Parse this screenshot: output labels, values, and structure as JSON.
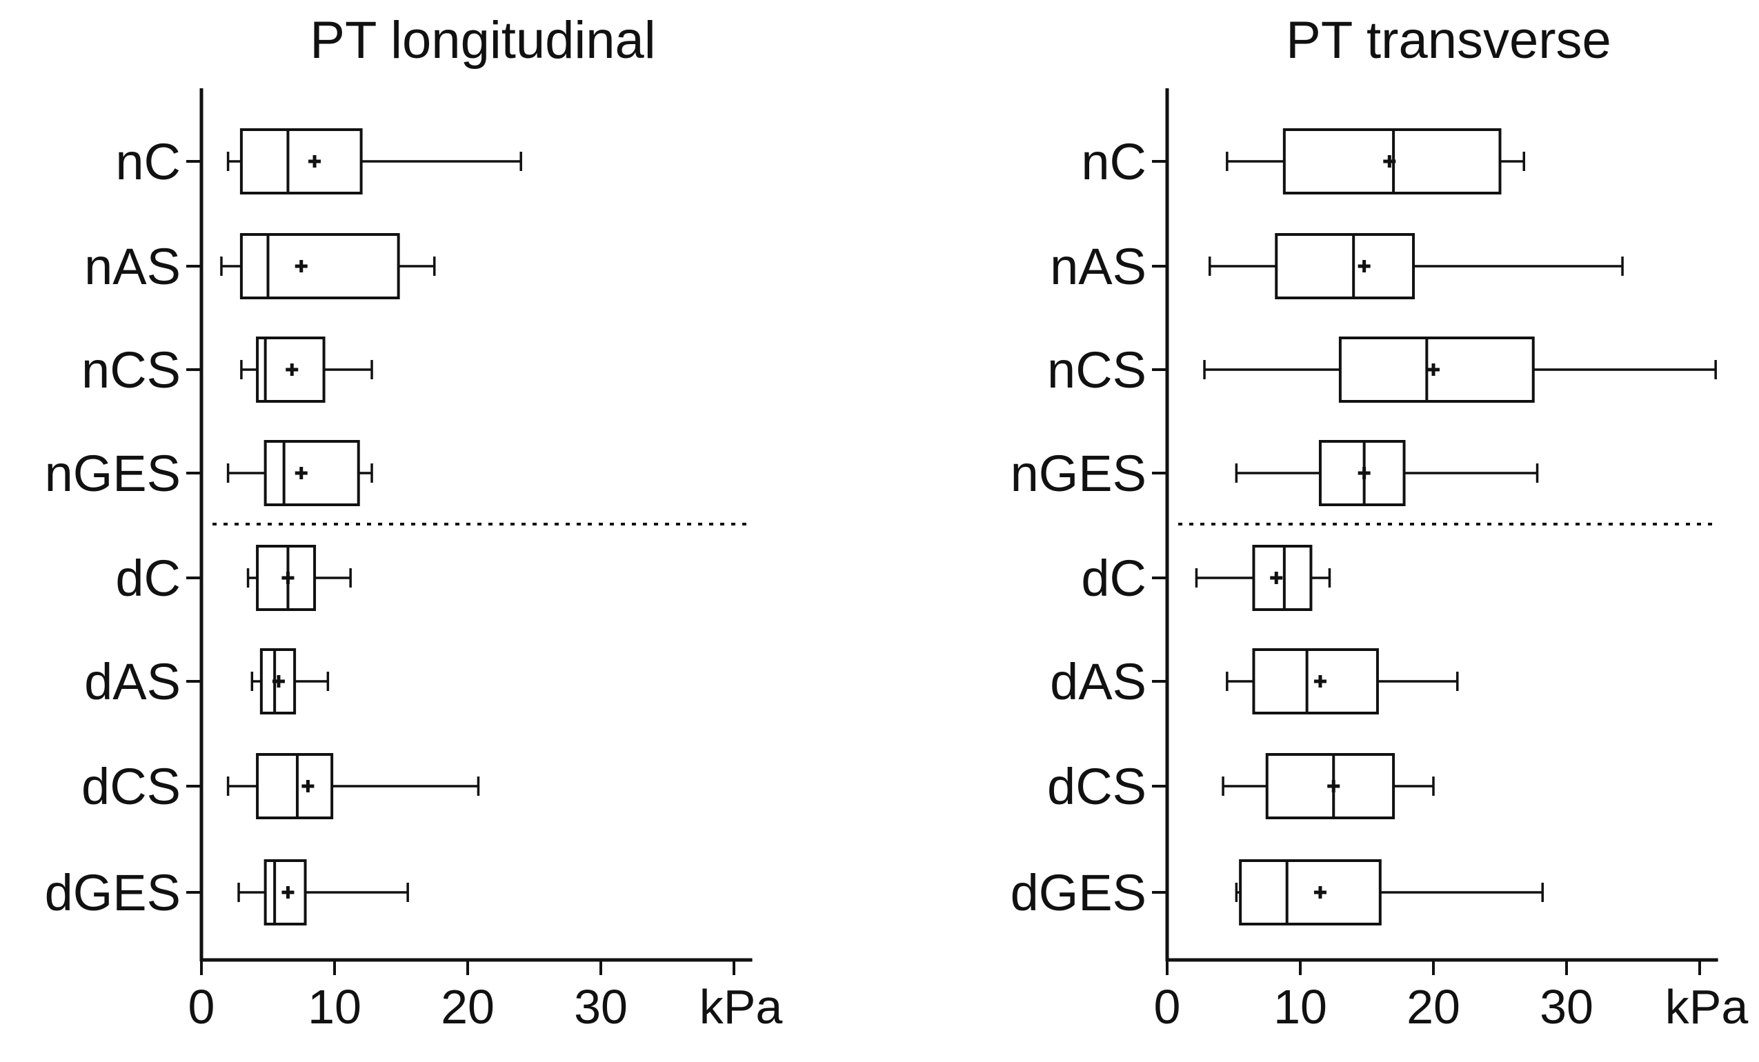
{
  "chart_data": [
    {
      "type": "boxplot",
      "title": "PT longitudinal",
      "unit_label": "kPa",
      "xlim": [
        0,
        42
      ],
      "xticks": [
        "0",
        "10",
        "20",
        "30"
      ],
      "categories": [
        "nC",
        "nAS",
        "nCS",
        "nGES",
        "dC",
        "dAS",
        "dCS",
        "dGES"
      ],
      "series": [
        {
          "name": "nC",
          "min": 2.0,
          "q1": 3.0,
          "median": 6.5,
          "q3": 12.0,
          "max": 24.0,
          "mean": 8.5
        },
        {
          "name": "nAS",
          "min": 1.5,
          "q1": 3.0,
          "median": 5.0,
          "q3": 14.8,
          "max": 17.5,
          "mean": 7.5
        },
        {
          "name": "nCS",
          "min": 3.0,
          "q1": 4.2,
          "median": 4.8,
          "q3": 9.2,
          "max": 12.8,
          "mean": 6.8
        },
        {
          "name": "nGES",
          "min": 2.0,
          "q1": 4.8,
          "median": 6.2,
          "q3": 11.8,
          "max": 12.8,
          "mean": 7.5
        },
        {
          "name": "dC",
          "min": 3.5,
          "q1": 4.2,
          "median": 6.5,
          "q3": 8.5,
          "max": 11.2,
          "mean": 6.5
        },
        {
          "name": "dAS",
          "min": 3.8,
          "q1": 4.5,
          "median": 5.5,
          "q3": 7.0,
          "max": 9.5,
          "mean": 5.8
        },
        {
          "name": "dCS",
          "min": 2.0,
          "q1": 4.2,
          "median": 7.2,
          "q3": 9.8,
          "max": 20.8,
          "mean": 8.0
        },
        {
          "name": "dGES",
          "min": 2.8,
          "q1": 4.8,
          "median": 5.5,
          "q3": 7.8,
          "max": 15.5,
          "mean": 6.5
        }
      ]
    },
    {
      "type": "boxplot",
      "title": "PT transverse",
      "unit_label": "kPa",
      "xlim": [
        0,
        42
      ],
      "xticks": [
        "0",
        "10",
        "20",
        "30"
      ],
      "categories": [
        "nC",
        "nAS",
        "nCS",
        "nGES",
        "dC",
        "dAS",
        "dCS",
        "dGES"
      ],
      "series": [
        {
          "name": "nC",
          "min": 4.5,
          "q1": 8.8,
          "median": 17.0,
          "q3": 25.0,
          "max": 26.8,
          "mean": 16.7
        },
        {
          "name": "nAS",
          "min": 3.2,
          "q1": 8.2,
          "median": 14.0,
          "q3": 18.5,
          "max": 34.2,
          "mean": 14.8
        },
        {
          "name": "nCS",
          "min": 2.8,
          "q1": 13.0,
          "median": 19.5,
          "q3": 27.5,
          "max": 41.2,
          "mean": 20.0
        },
        {
          "name": "nGES",
          "min": 5.2,
          "q1": 11.5,
          "median": 14.8,
          "q3": 17.8,
          "max": 27.8,
          "mean": 14.8
        },
        {
          "name": "dC",
          "min": 2.2,
          "q1": 6.5,
          "median": 8.8,
          "q3": 10.8,
          "max": 12.2,
          "mean": 8.2
        },
        {
          "name": "dAS",
          "min": 4.5,
          "q1": 6.5,
          "median": 10.5,
          "q3": 15.8,
          "max": 21.8,
          "mean": 11.5
        },
        {
          "name": "dCS",
          "min": 4.2,
          "q1": 7.5,
          "median": 12.5,
          "q3": 17.0,
          "max": 20.0,
          "mean": 12.5
        },
        {
          "name": "dGES",
          "min": 5.2,
          "q1": 5.5,
          "median": 9.0,
          "q3": 16.0,
          "max": 28.2,
          "mean": 11.5
        }
      ]
    }
  ]
}
